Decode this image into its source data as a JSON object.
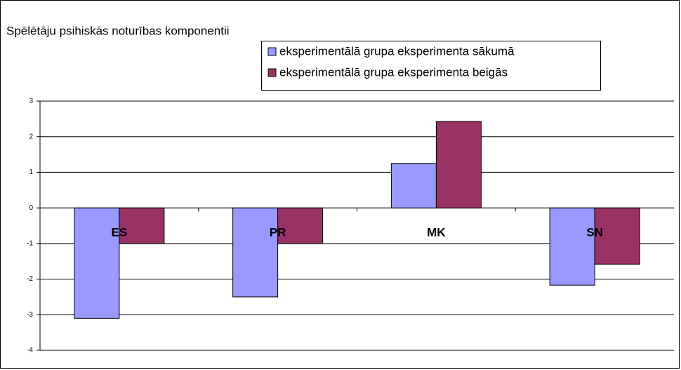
{
  "chart_data": {
    "type": "bar",
    "title": "Spēlētāju psihiskās noturības komponentii",
    "categories": [
      "ES",
      "PR",
      "MK",
      "SN"
    ],
    "series": [
      {
        "name": "eksperimentālā grupa eksperimenta sākumā",
        "color": "#9999ff",
        "values": [
          -3.1,
          -2.5,
          1.25,
          -2.17
        ]
      },
      {
        "name": "eksperimentālā grupa eksperimenta beigās",
        "color": "#993366",
        "values": [
          -1.0,
          -1.0,
          2.43,
          -1.58
        ]
      }
    ],
    "ylim": [
      -4,
      3
    ],
    "yticks": [
      -4,
      -3,
      -2,
      -1,
      0,
      1,
      2,
      3
    ],
    "grid": true
  }
}
